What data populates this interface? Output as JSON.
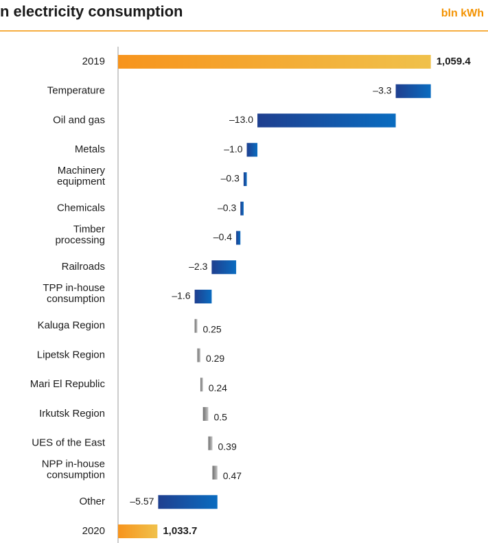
{
  "chart_data": {
    "type": "waterfall",
    "title": "n electricity consumption",
    "unit": "bln kWh",
    "categories": [
      "2019",
      "Temperature",
      "Oil and gas",
      "Metals",
      "Machinery\nequipment",
      "Chemicals",
      "Timber\nprocessing",
      "Railroads",
      "TPP in-house\nconsumption",
      "Kaluga Region",
      "Lipetsk Region",
      "Mari El Republic",
      "Irkutsk Region",
      "UES of the East",
      "NPP in-house\nconsumption",
      "Other",
      "2020"
    ],
    "measure": [
      "absolute",
      "relative",
      "relative",
      "relative",
      "relative",
      "relative",
      "relative",
      "relative",
      "relative",
      "relative",
      "relative",
      "relative",
      "relative",
      "relative",
      "relative",
      "relative",
      "total"
    ],
    "values": [
      1059.4,
      -3.3,
      -13.0,
      -1.0,
      -0.3,
      -0.3,
      -0.4,
      -2.3,
      -1.6,
      0.25,
      0.29,
      0.24,
      0.5,
      0.39,
      0.47,
      -5.57,
      1033.7
    ],
    "value_labels": [
      "1,059.4",
      "–3.3",
      "–13.0",
      "–1.0",
      "–0.3",
      "–0.3",
      "–0.4",
      "–2.3",
      "–1.6",
      "0.25",
      "0.29",
      "0.24",
      "0.5",
      "0.39",
      "0.47",
      "–5.57",
      "1,033.7"
    ],
    "xlim": [
      1030,
      1060
    ],
    "colors": {
      "total": [
        "#f7941d",
        "#f0c14b"
      ],
      "decrease": [
        "#1f3f8f",
        "#0a6cc0"
      ],
      "increase": [
        "#6e6e6e",
        "#c4c4c4"
      ]
    }
  }
}
